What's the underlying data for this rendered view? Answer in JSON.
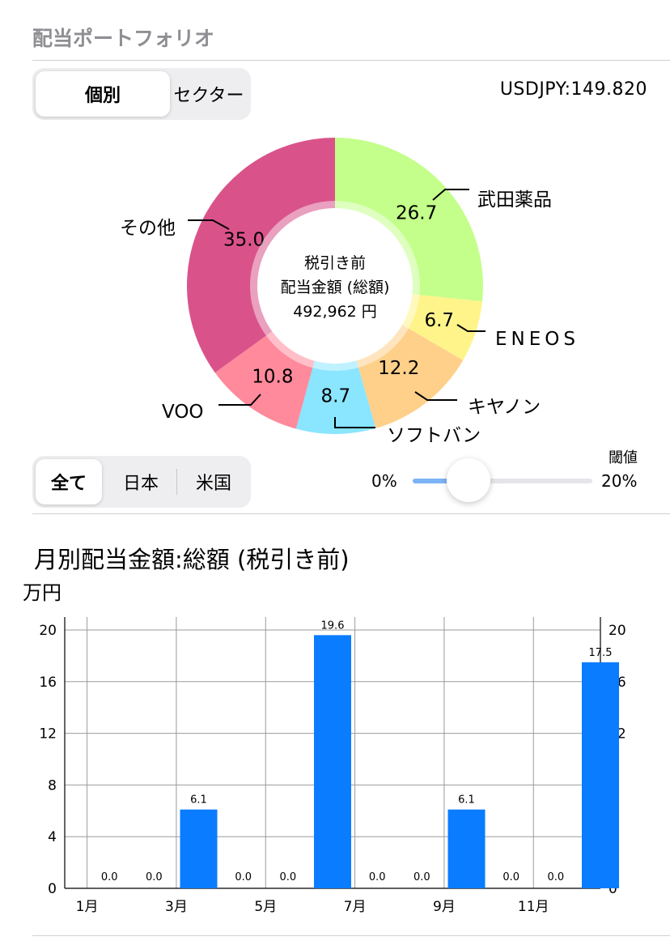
{
  "section": {
    "title": "配当ポートフォリオ"
  },
  "view_toggle": {
    "options": [
      "個別",
      "セクター"
    ],
    "selected": "個別"
  },
  "exchange_rate": "USDJPY:149.820",
  "donut": {
    "center_lines": [
      "税引き前",
      "配当金額 (総額)",
      "492,962 円"
    ],
    "slices": [
      {
        "name": "武田薬品",
        "value": 26.7,
        "color": "#c3ff8a"
      },
      {
        "name": "ENEOS",
        "value": 6.7,
        "color": "#fff48a"
      },
      {
        "name": "キヤノン",
        "value": 12.2,
        "color": "#ffd08a"
      },
      {
        "name": "ソフトバン",
        "value": 8.7,
        "color": "#8ae5ff"
      },
      {
        "name": "VOO",
        "value": 10.8,
        "color": "#ff8a9c"
      },
      {
        "name": "その他",
        "value": 35.0,
        "color": "#d9538a"
      }
    ]
  },
  "market_filter": {
    "options": [
      "全て",
      "日本",
      "米国"
    ],
    "selected": "全て"
  },
  "threshold": {
    "title": "閾値",
    "min_label": "0%",
    "max_label": "20%",
    "value_fraction": 0.31
  },
  "chart_section": {
    "title": "月別配当金額:総額 (税引き前)",
    "unit": "万円"
  },
  "chart_data": {
    "type": "bar",
    "title": "月別配当金額:総額 (税引き前)",
    "ylabel": "万円",
    "categories": [
      "1月",
      "2月",
      "3月",
      "4月",
      "5月",
      "6月",
      "7月",
      "8月",
      "9月",
      "10月",
      "11月",
      "12月"
    ],
    "x_tick_labels": [
      "1月",
      "3月",
      "5月",
      "7月",
      "9月",
      "11月"
    ],
    "values": [
      0.0,
      0.0,
      6.1,
      0.0,
      0.0,
      19.6,
      0.0,
      0.0,
      6.1,
      0.0,
      0.0,
      17.5
    ],
    "data_labels": [
      "0.0",
      "0.0",
      "6.1",
      "0.0",
      "0.0",
      "19.6",
      "0.0",
      "0.0",
      "6.1",
      "0.0",
      "0.0",
      "17.5"
    ],
    "y_ticks": [
      0,
      4,
      8,
      12,
      16,
      20
    ],
    "ylim": [
      0,
      21
    ],
    "grid": true,
    "color": "#0a7cff"
  }
}
